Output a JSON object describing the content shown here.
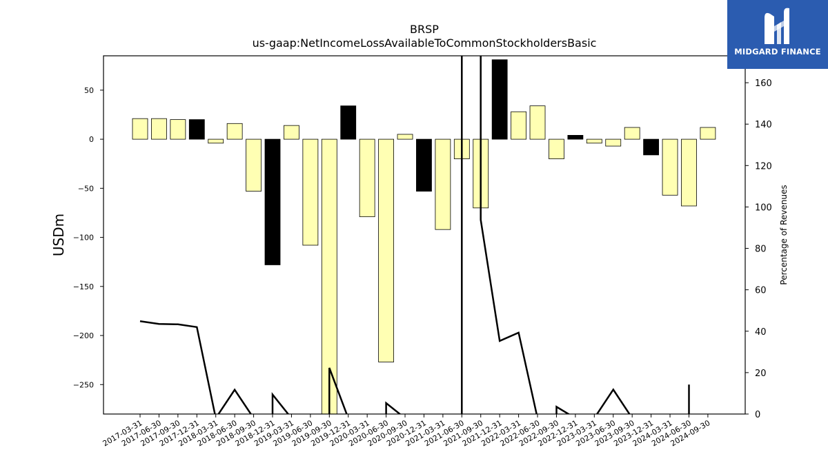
{
  "chart_data": {
    "type": "bar",
    "title": "BRSP",
    "subtitle": "us-gaap:NetIncomeLossAvailableToCommonStockholdersBasic",
    "ylabel": "USDm",
    "y2label": "Percentage of Revenues",
    "ylim": [
      -280,
      85
    ],
    "y2lim": [
      0,
      173
    ],
    "yticks": [
      50,
      0,
      -50,
      -100,
      -150,
      -200,
      -250
    ],
    "y2ticks": [
      0,
      20,
      40,
      60,
      80,
      100,
      120,
      140,
      160
    ],
    "categories": [
      "2017-03-31",
      "2017-06-30",
      "2017-09-30",
      "2017-12-31",
      "2018-03-31",
      "2018-06-30",
      "2018-09-30",
      "2018-12-31",
      "2019-03-31",
      "2019-06-30",
      "2019-09-30",
      "2019-12-31",
      "2020-03-31",
      "2020-06-30",
      "2020-09-30",
      "2020-12-31",
      "2021-03-31",
      "2021-06-30",
      "2021-09-30",
      "2021-12-31",
      "2022-03-31",
      "2022-06-30",
      "2022-09-30",
      "2022-12-31",
      "2023-03-31",
      "2023-06-30",
      "2023-09-30",
      "2023-12-31",
      "2024-03-31",
      "2024-06-30",
      "2024-09-30"
    ],
    "values": [
      21,
      21,
      20,
      20,
      -4,
      16,
      -53,
      -128,
      14,
      -108,
      -285,
      34,
      -79,
      -227,
      5,
      -53,
      -92,
      -20,
      -70,
      81,
      28,
      34,
      -20,
      4,
      -4,
      -7,
      12,
      -16,
      -57,
      -68,
      12
    ],
    "bar_colors": [
      "#ffffb3",
      "#ffffb3",
      "#ffffb3",
      "#000000",
      "#ffffb3",
      "#ffffb3",
      "#ffffb3",
      "#000000",
      "#ffffb3",
      "#ffffb3",
      "#ffffb3",
      "#000000",
      "#ffffb3",
      "#ffffb3",
      "#ffffb3",
      "#000000",
      "#ffffb3",
      "#ffffb3",
      "#ffffb3",
      "#000000",
      "#ffffb3",
      "#ffffb3",
      "#ffffb3",
      "#000000",
      "#ffffb3",
      "#ffffb3",
      "#ffffb3",
      "#000000",
      "#ffffb3",
      "#ffffb3",
      "#ffffb3"
    ],
    "line_series": {
      "points": [
        [
          "2017-03-31",
          44.8
        ],
        [
          "2017-06-30",
          43.5
        ],
        [
          "2017-09-30",
          43.3
        ],
        [
          "2017-12-31",
          42.0
        ],
        [
          "2018-03-31",
          -2
        ],
        [
          "2018-06-30",
          11.7
        ],
        [
          "2018-09-30",
          -2
        ],
        [
          "2018-12-31",
          -2
        ],
        [
          "2018-12-31",
          9.4
        ],
        [
          "2019-03-31",
          -2
        ],
        [
          "2019-09-30",
          -2
        ],
        [
          "2019-09-30",
          22.3
        ],
        [
          "2019-12-31",
          -2
        ],
        [
          "2020-06-30",
          -2
        ],
        [
          "2020-06-30",
          5.3
        ],
        [
          "2020-09-30",
          -2
        ],
        [
          "2021-06-30",
          -2
        ],
        [
          "2021-06-30",
          200
        ],
        [
          "2021-09-30",
          200
        ],
        [
          "2021-09-30",
          93.8
        ],
        [
          "2021-12-31",
          35.3
        ],
        [
          "2022-03-31",
          39.3
        ],
        [
          "2022-06-30",
          -2
        ],
        [
          "2022-09-30",
          -2
        ],
        [
          "2022-09-30",
          3.5
        ],
        [
          "2022-12-31",
          -2
        ],
        [
          "2023-03-31",
          -2
        ],
        [
          "2023-06-30",
          11.8
        ],
        [
          "2023-09-30",
          -2
        ],
        [
          "2024-06-30",
          -2
        ],
        [
          "2024-06-30",
          14.2
        ]
      ]
    },
    "colors": {
      "positive_bar": "#ffffb3",
      "year_end_bar": "#000000",
      "line": "#000000"
    }
  },
  "logo": {
    "text": "MIDGARD FINANCE",
    "background": "#2b5cb0"
  }
}
